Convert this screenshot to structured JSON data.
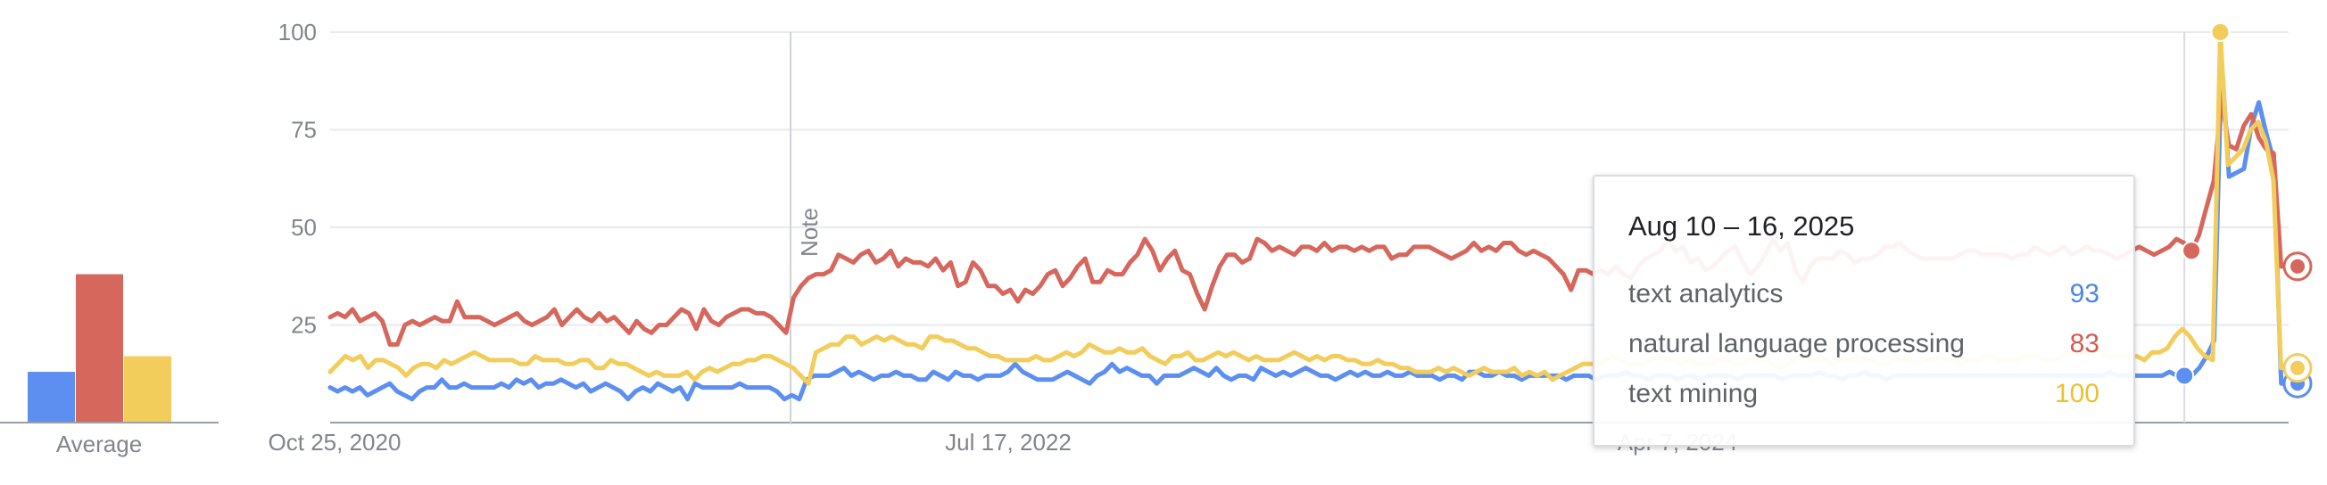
{
  "chart_data": {
    "type": "line",
    "title": "",
    "xlabel": "",
    "ylabel": "",
    "ylim": [
      0,
      100
    ],
    "yticks": [
      25,
      50,
      75,
      100
    ],
    "xticks": [
      "Oct 25, 2020",
      "Jul 17, 2022",
      "Apr 7, 2024"
    ],
    "grid": true,
    "note_label": "Note",
    "average_label": "Average",
    "series": [
      {
        "name": "text analytics",
        "color": "#5c8ff0",
        "average": 13,
        "values": [
          9,
          8,
          9,
          8,
          9,
          7,
          8,
          9,
          10,
          8,
          7,
          6,
          8,
          9,
          9,
          11,
          9,
          9,
          10,
          9,
          9,
          9,
          9,
          10,
          9,
          11,
          10,
          11,
          9,
          10,
          10,
          11,
          10,
          9,
          10,
          8,
          9,
          10,
          9,
          8,
          6,
          8,
          9,
          8,
          10,
          9,
          8,
          9,
          6,
          10,
          9,
          9,
          9,
          9,
          9,
          10,
          9,
          9,
          9,
          9,
          8,
          6,
          7,
          6,
          11,
          12,
          12,
          12,
          13,
          14,
          12,
          13,
          12,
          11,
          12,
          12,
          13,
          12,
          12,
          11,
          11,
          13,
          12,
          11,
          13,
          12,
          12,
          11,
          12,
          12,
          12,
          13,
          15,
          13,
          12,
          11,
          11,
          11,
          12,
          13,
          12,
          11,
          10,
          12,
          13,
          15,
          13,
          14,
          13,
          12,
          12,
          10,
          12,
          12,
          12,
          13,
          14,
          13,
          12,
          14,
          12,
          11,
          12,
          12,
          11,
          14,
          13,
          12,
          13,
          12,
          13,
          14,
          13,
          12,
          12,
          11,
          12,
          13,
          12,
          13,
          12,
          12,
          13,
          12,
          12,
          13,
          12,
          12,
          12,
          11,
          12,
          12,
          11,
          13,
          13,
          12,
          12,
          13,
          12,
          12,
          11,
          12,
          12,
          12,
          12,
          12,
          11,
          12,
          12,
          12,
          11,
          12,
          12,
          12,
          13,
          12,
          12,
          11,
          12,
          12,
          12,
          11,
          12,
          12,
          11,
          12,
          12,
          12,
          12,
          11,
          12,
          12,
          12,
          12,
          12,
          11,
          12,
          12,
          12,
          12,
          13,
          12,
          12,
          11,
          12,
          12,
          13,
          12,
          12,
          11,
          12,
          12,
          12,
          12,
          12,
          12,
          12,
          12,
          12,
          12,
          12,
          12,
          12,
          12,
          12,
          12,
          12,
          12,
          12,
          12,
          12,
          12,
          12,
          12,
          12,
          12,
          12,
          12,
          12,
          13,
          12,
          12,
          12,
          12,
          12,
          12,
          12,
          13,
          12,
          12,
          12,
          14,
          17,
          21,
          93,
          63,
          64,
          65,
          76,
          82,
          74,
          67,
          10,
          10
        ]
      },
      {
        "name": "natural language processing",
        "color": "#d6675d",
        "average": 38,
        "values": [
          27,
          28,
          27,
          29,
          26,
          27,
          28,
          26,
          20,
          20,
          25,
          26,
          25,
          26,
          27,
          26,
          26,
          31,
          27,
          27,
          27,
          26,
          25,
          26,
          27,
          28,
          26,
          25,
          26,
          27,
          29,
          25,
          27,
          29,
          27,
          26,
          28,
          26,
          27,
          25,
          23,
          26,
          24,
          23,
          25,
          25,
          27,
          29,
          28,
          24,
          29,
          26,
          25,
          27,
          28,
          29,
          29,
          28,
          28,
          27,
          25,
          23,
          32,
          35,
          37,
          38,
          38,
          39,
          43,
          42,
          41,
          43,
          44,
          41,
          42,
          44,
          40,
          42,
          41,
          41,
          40,
          42,
          39,
          41,
          35,
          36,
          41,
          39,
          35,
          35,
          33,
          34,
          31,
          34,
          33,
          35,
          38,
          39,
          35,
          37,
          40,
          42,
          36,
          36,
          39,
          38,
          38,
          41,
          43,
          47,
          44,
          39,
          42,
          44,
          39,
          38,
          33,
          29,
          35,
          40,
          43,
          43,
          41,
          42,
          47,
          46,
          44,
          45,
          44,
          43,
          45,
          45,
          44,
          46,
          44,
          45,
          45,
          44,
          45,
          44,
          45,
          45,
          42,
          43,
          43,
          45,
          45,
          45,
          44,
          43,
          42,
          43,
          44,
          46,
          44,
          45,
          44,
          46,
          46,
          44,
          43,
          44,
          43,
          42,
          40,
          38,
          34,
          39,
          39,
          38,
          39,
          38,
          40,
          38,
          37,
          40,
          42,
          43,
          44,
          47,
          44,
          45,
          41,
          42,
          39,
          40,
          42,
          44,
          45,
          41,
          38,
          40,
          43,
          47,
          44,
          46,
          39,
          36,
          40,
          42,
          42,
          42,
          44,
          43,
          41,
          42,
          42,
          43,
          45,
          45,
          46,
          44,
          43,
          42,
          42,
          42,
          42,
          42,
          43,
          44,
          44,
          43,
          43,
          43,
          43,
          42,
          43,
          43,
          45,
          44,
          43,
          44,
          45,
          43,
          44,
          45,
          44,
          44,
          43,
          42,
          43,
          44,
          45,
          44,
          43,
          44,
          45,
          47,
          46,
          44,
          48,
          55,
          62,
          83,
          71,
          70,
          76,
          79,
          73,
          70,
          69,
          40,
          40
        ]
      },
      {
        "name": "text mining",
        "color": "#f2cd5c",
        "average": 17,
        "values": [
          13,
          15,
          17,
          16,
          17,
          14,
          16,
          16,
          15,
          14,
          12,
          14,
          15,
          15,
          14,
          16,
          15,
          16,
          17,
          18,
          17,
          16,
          16,
          16,
          16,
          15,
          15,
          17,
          16,
          16,
          16,
          15,
          15,
          16,
          16,
          14,
          14,
          16,
          15,
          15,
          14,
          13,
          12,
          13,
          12,
          12,
          12,
          13,
          11,
          13,
          14,
          13,
          14,
          15,
          15,
          16,
          16,
          17,
          17,
          16,
          15,
          14,
          12,
          10,
          18,
          19,
          20,
          20,
          22,
          22,
          20,
          21,
          22,
          21,
          22,
          21,
          20,
          20,
          19,
          22,
          22,
          21,
          21,
          20,
          19,
          19,
          18,
          17,
          17,
          16,
          16,
          16,
          16,
          17,
          16,
          16,
          17,
          18,
          17,
          18,
          20,
          19,
          18,
          18,
          19,
          18,
          18,
          19,
          17,
          16,
          15,
          17,
          17,
          18,
          16,
          16,
          17,
          18,
          17,
          18,
          17,
          16,
          17,
          16,
          16,
          16,
          17,
          18,
          17,
          16,
          17,
          16,
          17,
          17,
          16,
          16,
          15,
          15,
          16,
          15,
          15,
          14,
          14,
          13,
          13,
          13,
          14,
          13,
          14,
          13,
          12,
          13,
          14,
          13,
          13,
          13,
          14,
          12,
          13,
          12,
          13,
          11,
          12,
          13,
          14,
          15,
          15,
          15,
          16,
          17,
          16,
          15,
          15,
          15,
          16,
          17,
          16,
          16,
          15,
          16,
          15,
          15,
          15,
          16,
          16,
          15,
          15,
          16,
          16,
          16,
          15,
          14,
          15,
          16,
          17,
          16,
          16,
          16,
          15,
          16,
          16,
          17,
          16,
          16,
          15,
          15,
          16,
          16,
          16,
          15,
          16,
          16,
          17,
          16,
          16,
          15,
          16,
          16,
          17,
          17,
          16,
          16,
          16,
          17,
          17,
          17,
          16,
          16,
          17,
          18,
          18,
          18,
          18,
          19,
          17,
          17,
          17,
          17,
          17,
          16,
          18,
          18,
          19,
          22,
          24,
          22,
          19,
          17,
          16,
          100,
          66,
          68,
          70,
          75,
          77,
          72,
          62,
          14,
          14
        ]
      }
    ],
    "tooltip": {
      "title": "Aug 10 – 16, 2025",
      "rows": [
        {
          "label": "text analytics",
          "value": "93",
          "color": "#4a86e8"
        },
        {
          "label": "natural language processing",
          "value": "83",
          "color": "#d25a51"
        },
        {
          "label": "text mining",
          "value": "100",
          "color": "#e9c032"
        }
      ]
    }
  }
}
